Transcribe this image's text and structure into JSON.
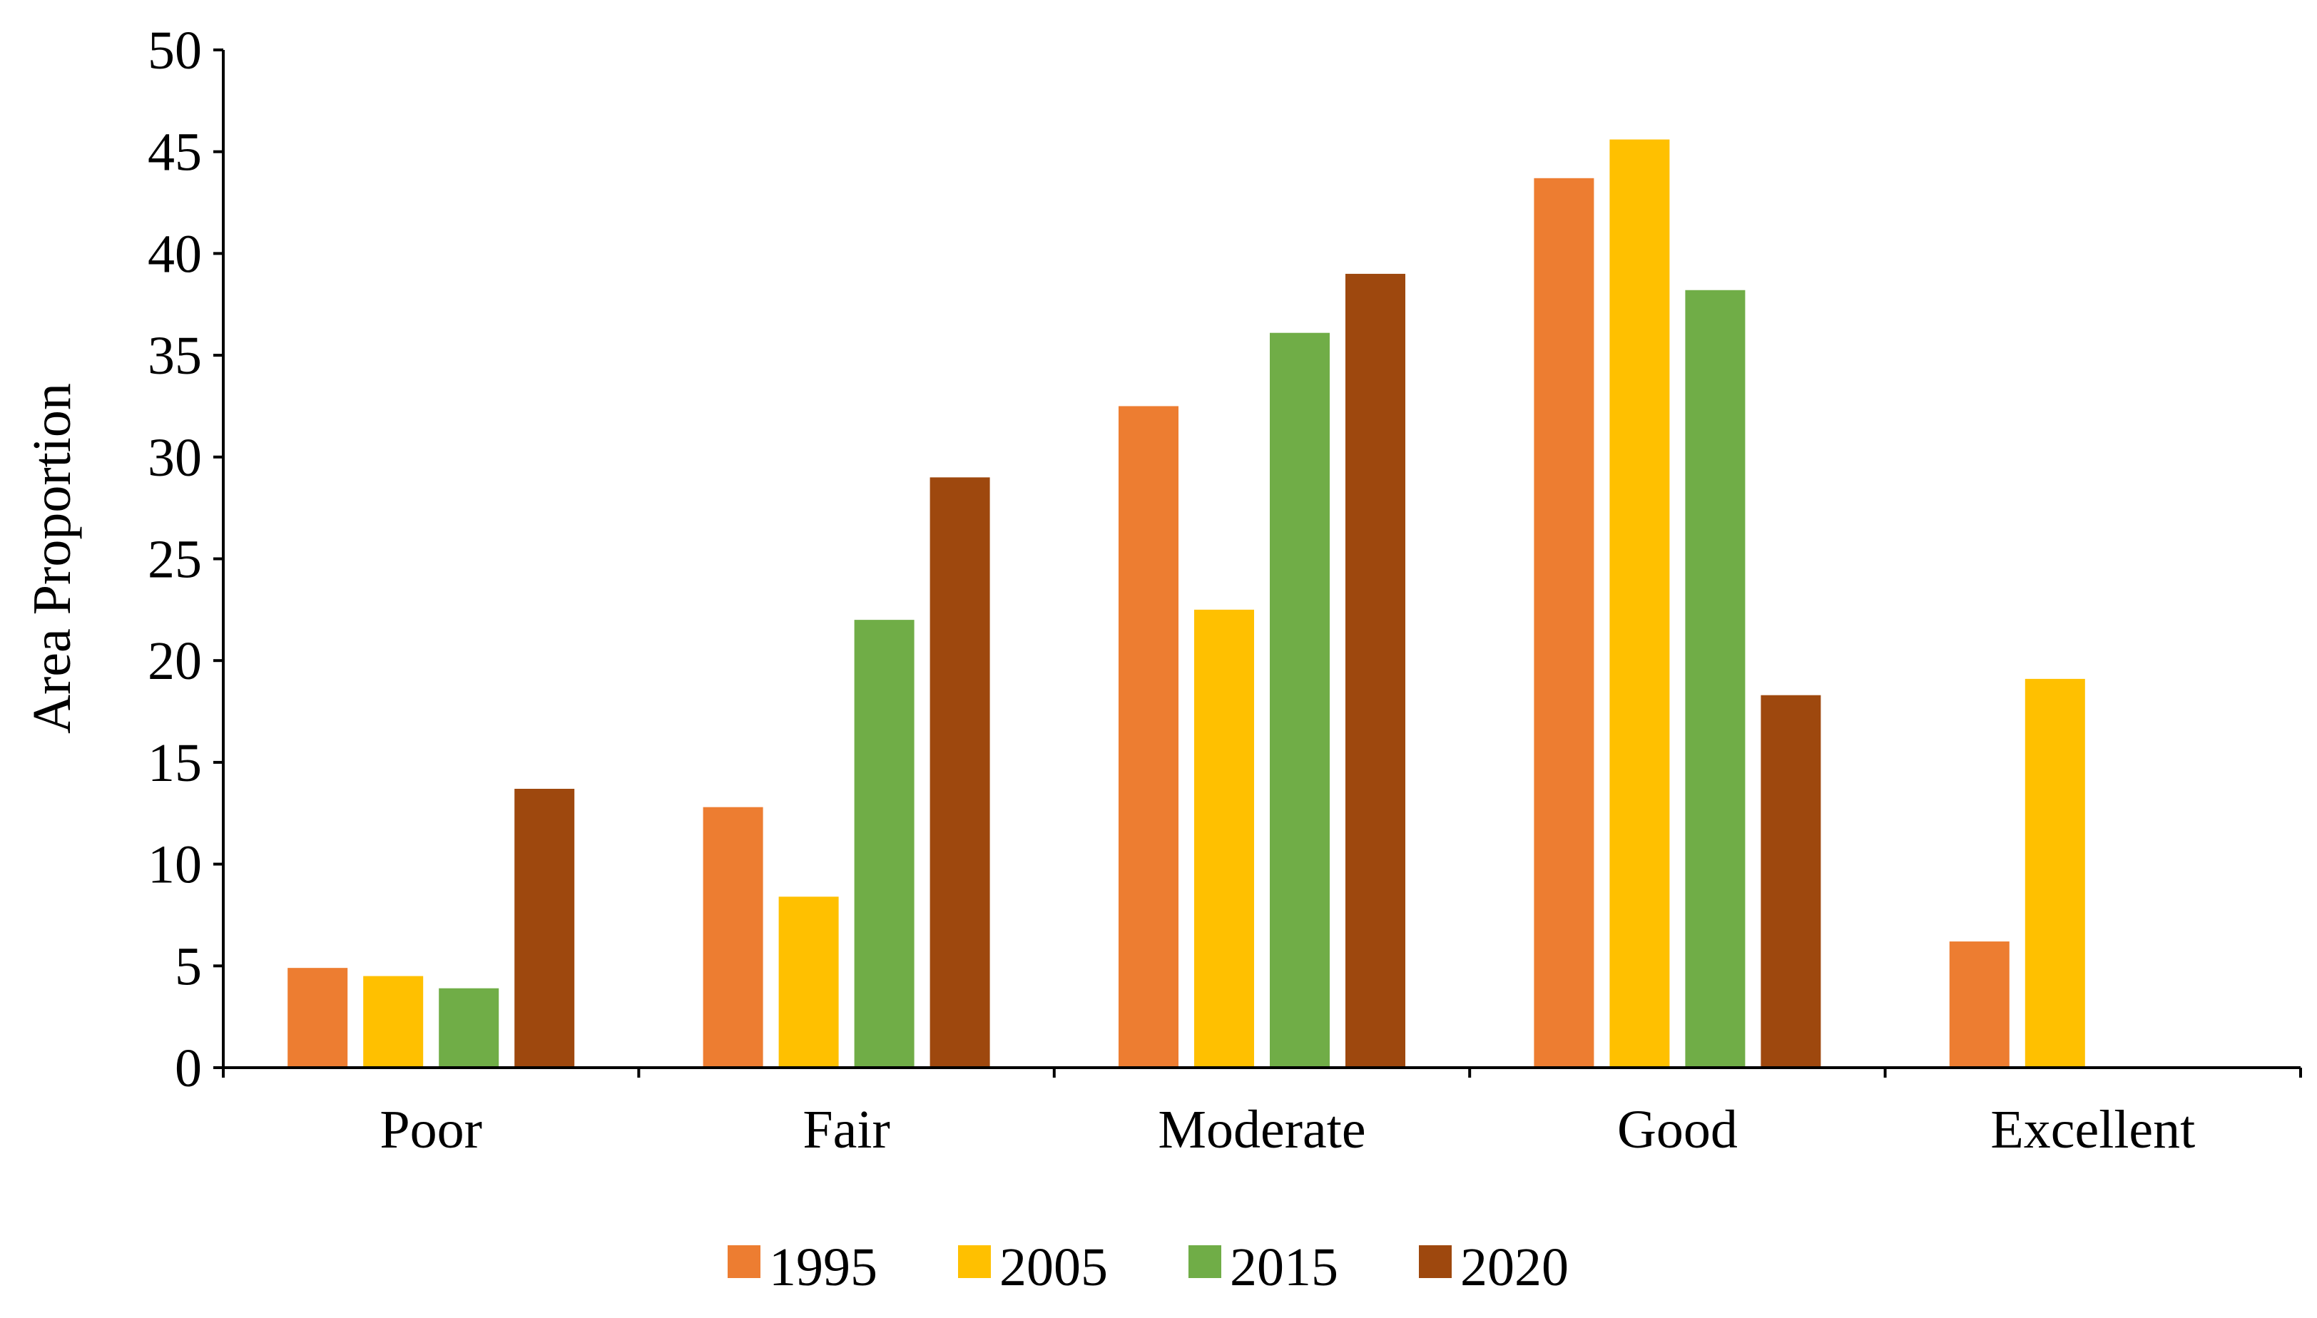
{
  "chart_data": {
    "type": "bar",
    "title": "",
    "xlabel": "",
    "ylabel": "Area Proportion",
    "ylim": [
      0,
      50
    ],
    "yticks": [
      0,
      5,
      10,
      15,
      20,
      25,
      30,
      35,
      40,
      45,
      50
    ],
    "categories": [
      "Poor",
      "Fair",
      "Moderate",
      "Good",
      "Excellent"
    ],
    "series": [
      {
        "name": "1995",
        "color": "#ED7D31",
        "values": [
          4.9,
          12.8,
          32.5,
          43.7,
          6.2
        ]
      },
      {
        "name": "2005",
        "color": "#FFC000",
        "values": [
          4.5,
          8.4,
          22.5,
          45.6,
          19.1
        ]
      },
      {
        "name": "2015",
        "color": "#70AD47",
        "values": [
          3.9,
          22.0,
          36.1,
          38.2,
          null
        ]
      },
      {
        "name": "2020",
        "color": "#9E480E",
        "values": [
          13.7,
          29.0,
          39.0,
          18.3,
          null
        ]
      }
    ],
    "legend_position": "bottom",
    "grid": false
  }
}
